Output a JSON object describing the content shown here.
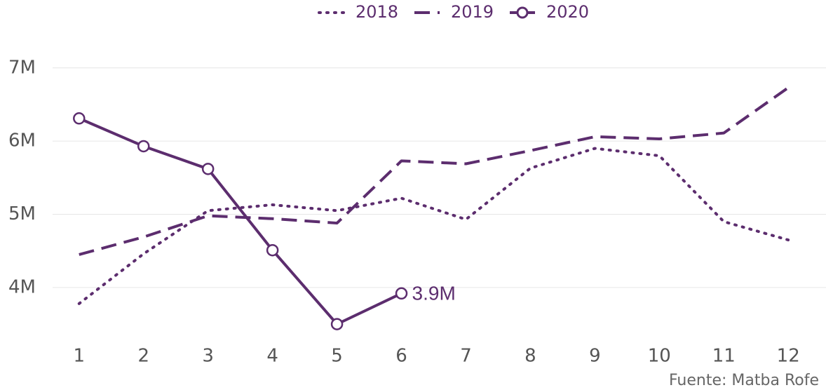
{
  "chart_data": {
    "type": "line",
    "x": [
      1,
      2,
      3,
      4,
      5,
      6,
      7,
      8,
      9,
      10,
      11,
      12
    ],
    "xlim": [
      0.6,
      12.4
    ],
    "xticks": [
      1,
      2,
      3,
      4,
      5,
      6,
      7,
      8,
      9,
      10,
      11,
      12
    ],
    "ylim": [
      3300000,
      7400000
    ],
    "yticks": [
      {
        "value": 4000000,
        "label": "4M"
      },
      {
        "value": 5000000,
        "label": "5M"
      },
      {
        "value": 6000000,
        "label": "6M"
      },
      {
        "value": 7000000,
        "label": "7M"
      }
    ],
    "grid": true,
    "legend": "top",
    "series": [
      {
        "name": "2018",
        "color": "#5c2d6e",
        "style": "dotted",
        "values": [
          3780000,
          4460000,
          5050000,
          5130000,
          5050000,
          5220000,
          4930000,
          5630000,
          5900000,
          5800000,
          4900000,
          4650000
        ]
      },
      {
        "name": "2019",
        "color": "#5c2d6e",
        "style": "dashed",
        "values": [
          4450000,
          4690000,
          4980000,
          4940000,
          4880000,
          5730000,
          5690000,
          5870000,
          6060000,
          6030000,
          6110000,
          6730000
        ]
      },
      {
        "name": "2020",
        "color": "#5c2d6e",
        "style": "solid",
        "markers": true,
        "values": [
          6310000,
          5930000,
          5620000,
          4510000,
          3500000,
          3920000,
          null,
          null,
          null,
          null,
          null,
          null
        ],
        "value_labels": [
          null,
          null,
          null,
          null,
          null,
          "3.9M",
          null,
          null,
          null,
          null,
          null,
          null
        ]
      }
    ],
    "source": "Fuente: Matba Rofe"
  }
}
